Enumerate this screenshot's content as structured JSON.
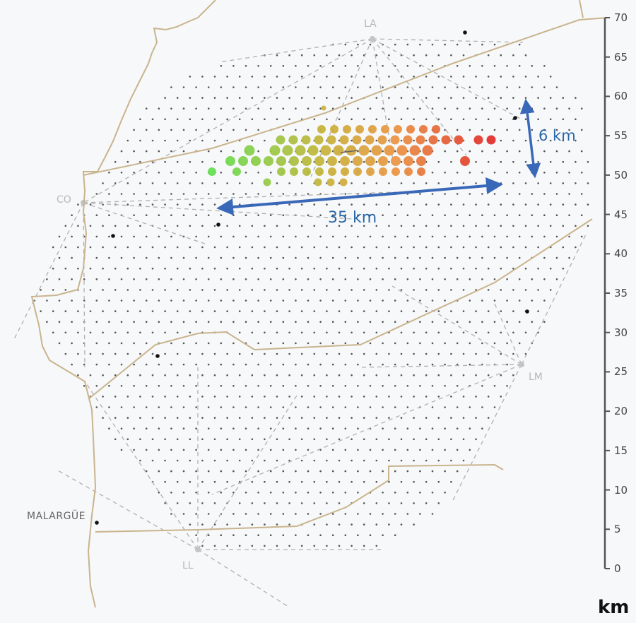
{
  "figure": {
    "type": "map",
    "scale_bar": {
      "unit": "km",
      "ticks": [
        "0",
        "5",
        "10",
        "15",
        "20",
        "25",
        "30",
        "35",
        "40",
        "45",
        "50",
        "55",
        "60",
        "65",
        "70"
      ]
    },
    "stations": [
      {
        "id": "LA",
        "label": "LA"
      },
      {
        "id": "CO",
        "label": "CO"
      },
      {
        "id": "LM",
        "label": "LM"
      },
      {
        "id": "LL",
        "label": "LL"
      }
    ],
    "town": {
      "label": "MALARGÜE"
    },
    "annotations": {
      "horizontal_extent": "35 km",
      "vertical_extent": "6 km"
    },
    "colors": {
      "grid_dot": "#555555",
      "border": "#c9b48e",
      "dashed": "#b0b0b0",
      "arrow": "#3a68b8",
      "track_start": "#66e055",
      "track_mid": "#d6b040",
      "track_end": "#e03030"
    }
  }
}
